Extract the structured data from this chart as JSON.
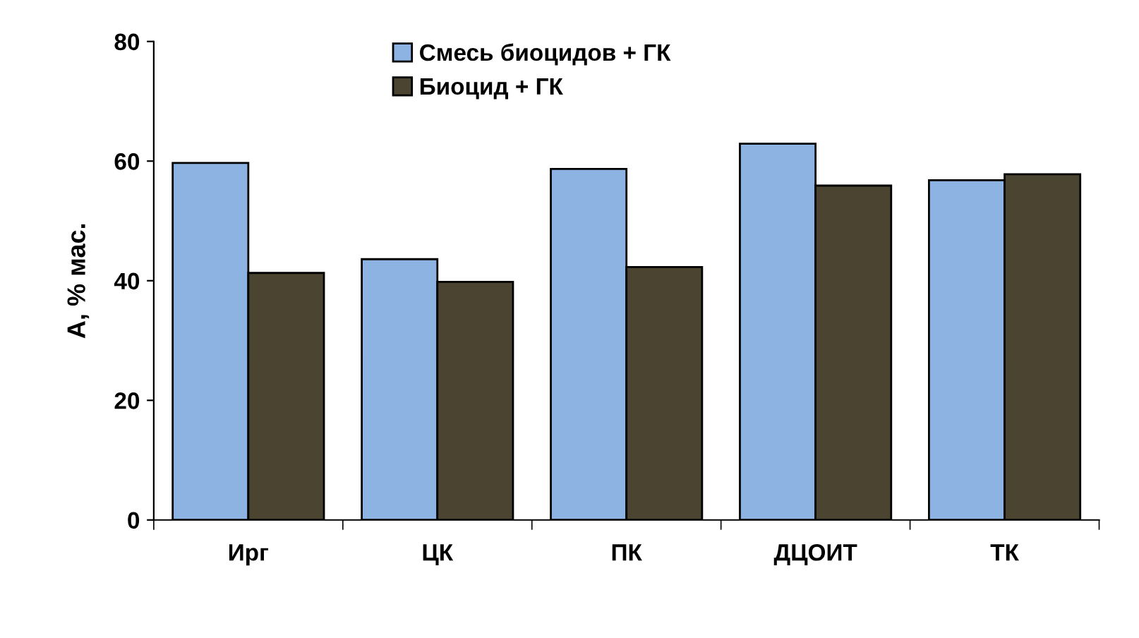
{
  "chart_data": {
    "type": "bar",
    "ylabel": "A, % мас.",
    "categories": [
      "Ирг",
      "ЦК",
      "ПК",
      "ДЦОИТ",
      "ТК"
    ],
    "series": [
      {
        "name": "Смесь биоцидов + ГК",
        "color": "#8db3e2",
        "values": [
          59.7,
          43.6,
          58.7,
          62.9,
          56.8
        ]
      },
      {
        "name": "Биоцид + ГК",
        "color": "#4a4430",
        "values": [
          41.3,
          39.8,
          42.3,
          55.9,
          57.8
        ]
      }
    ],
    "ylim": [
      0,
      80
    ],
    "yticks": [
      0,
      20,
      40,
      60,
      80
    ],
    "grid": false,
    "legend": "top"
  }
}
